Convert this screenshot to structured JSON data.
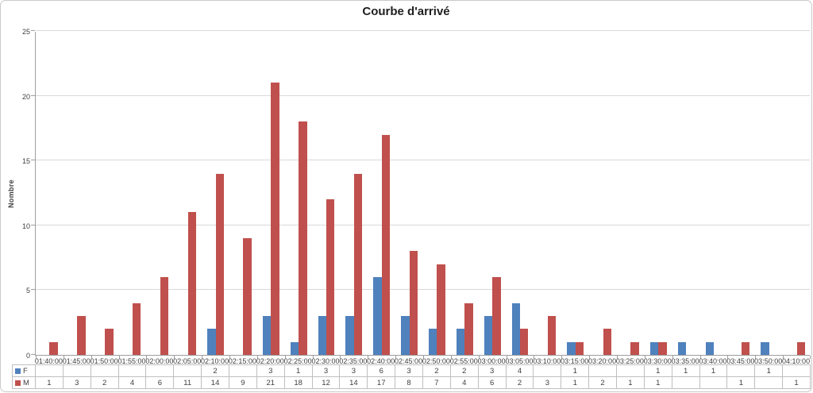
{
  "chart_data": {
    "type": "bar",
    "title": "Courbe d'arrivé",
    "xlabel": "",
    "ylabel": "Nombre",
    "ylim": [
      0,
      25
    ],
    "yticks": [
      0,
      5,
      10,
      15,
      20,
      25
    ],
    "grid": true,
    "legend_position": "data-table-left",
    "categories": [
      "01:40:00",
      "01:45:00",
      "01:50:00",
      "01:55:00",
      "02:00:00",
      "02:05:00",
      "02:10:00",
      "02:15:00",
      "02:20:00",
      "02:25:00",
      "02:30:00",
      "02:35:00",
      "02:40:00",
      "02:45:00",
      "02:50:00",
      "02:55:00",
      "03:00:00",
      "03:05:00",
      "03:10:00",
      "03:15:00",
      "03:20:00",
      "03:25:00",
      "03:30:00",
      "03:35:00",
      "03:40:00",
      "03:45:00",
      "03:50:00",
      "04:10:00"
    ],
    "series": [
      {
        "name": "F",
        "color": "#4F81BD",
        "values": [
          null,
          null,
          null,
          null,
          null,
          null,
          2,
          null,
          3,
          1,
          3,
          3,
          6,
          3,
          2,
          2,
          3,
          4,
          null,
          1,
          null,
          null,
          1,
          1,
          1,
          null,
          1,
          null
        ]
      },
      {
        "name": "M",
        "color": "#C0504D",
        "values": [
          1,
          3,
          2,
          4,
          6,
          11,
          14,
          9,
          21,
          18,
          12,
          14,
          17,
          8,
          7,
          4,
          6,
          2,
          3,
          1,
          2,
          1,
          1,
          null,
          null,
          1,
          null,
          1
        ]
      }
    ]
  }
}
